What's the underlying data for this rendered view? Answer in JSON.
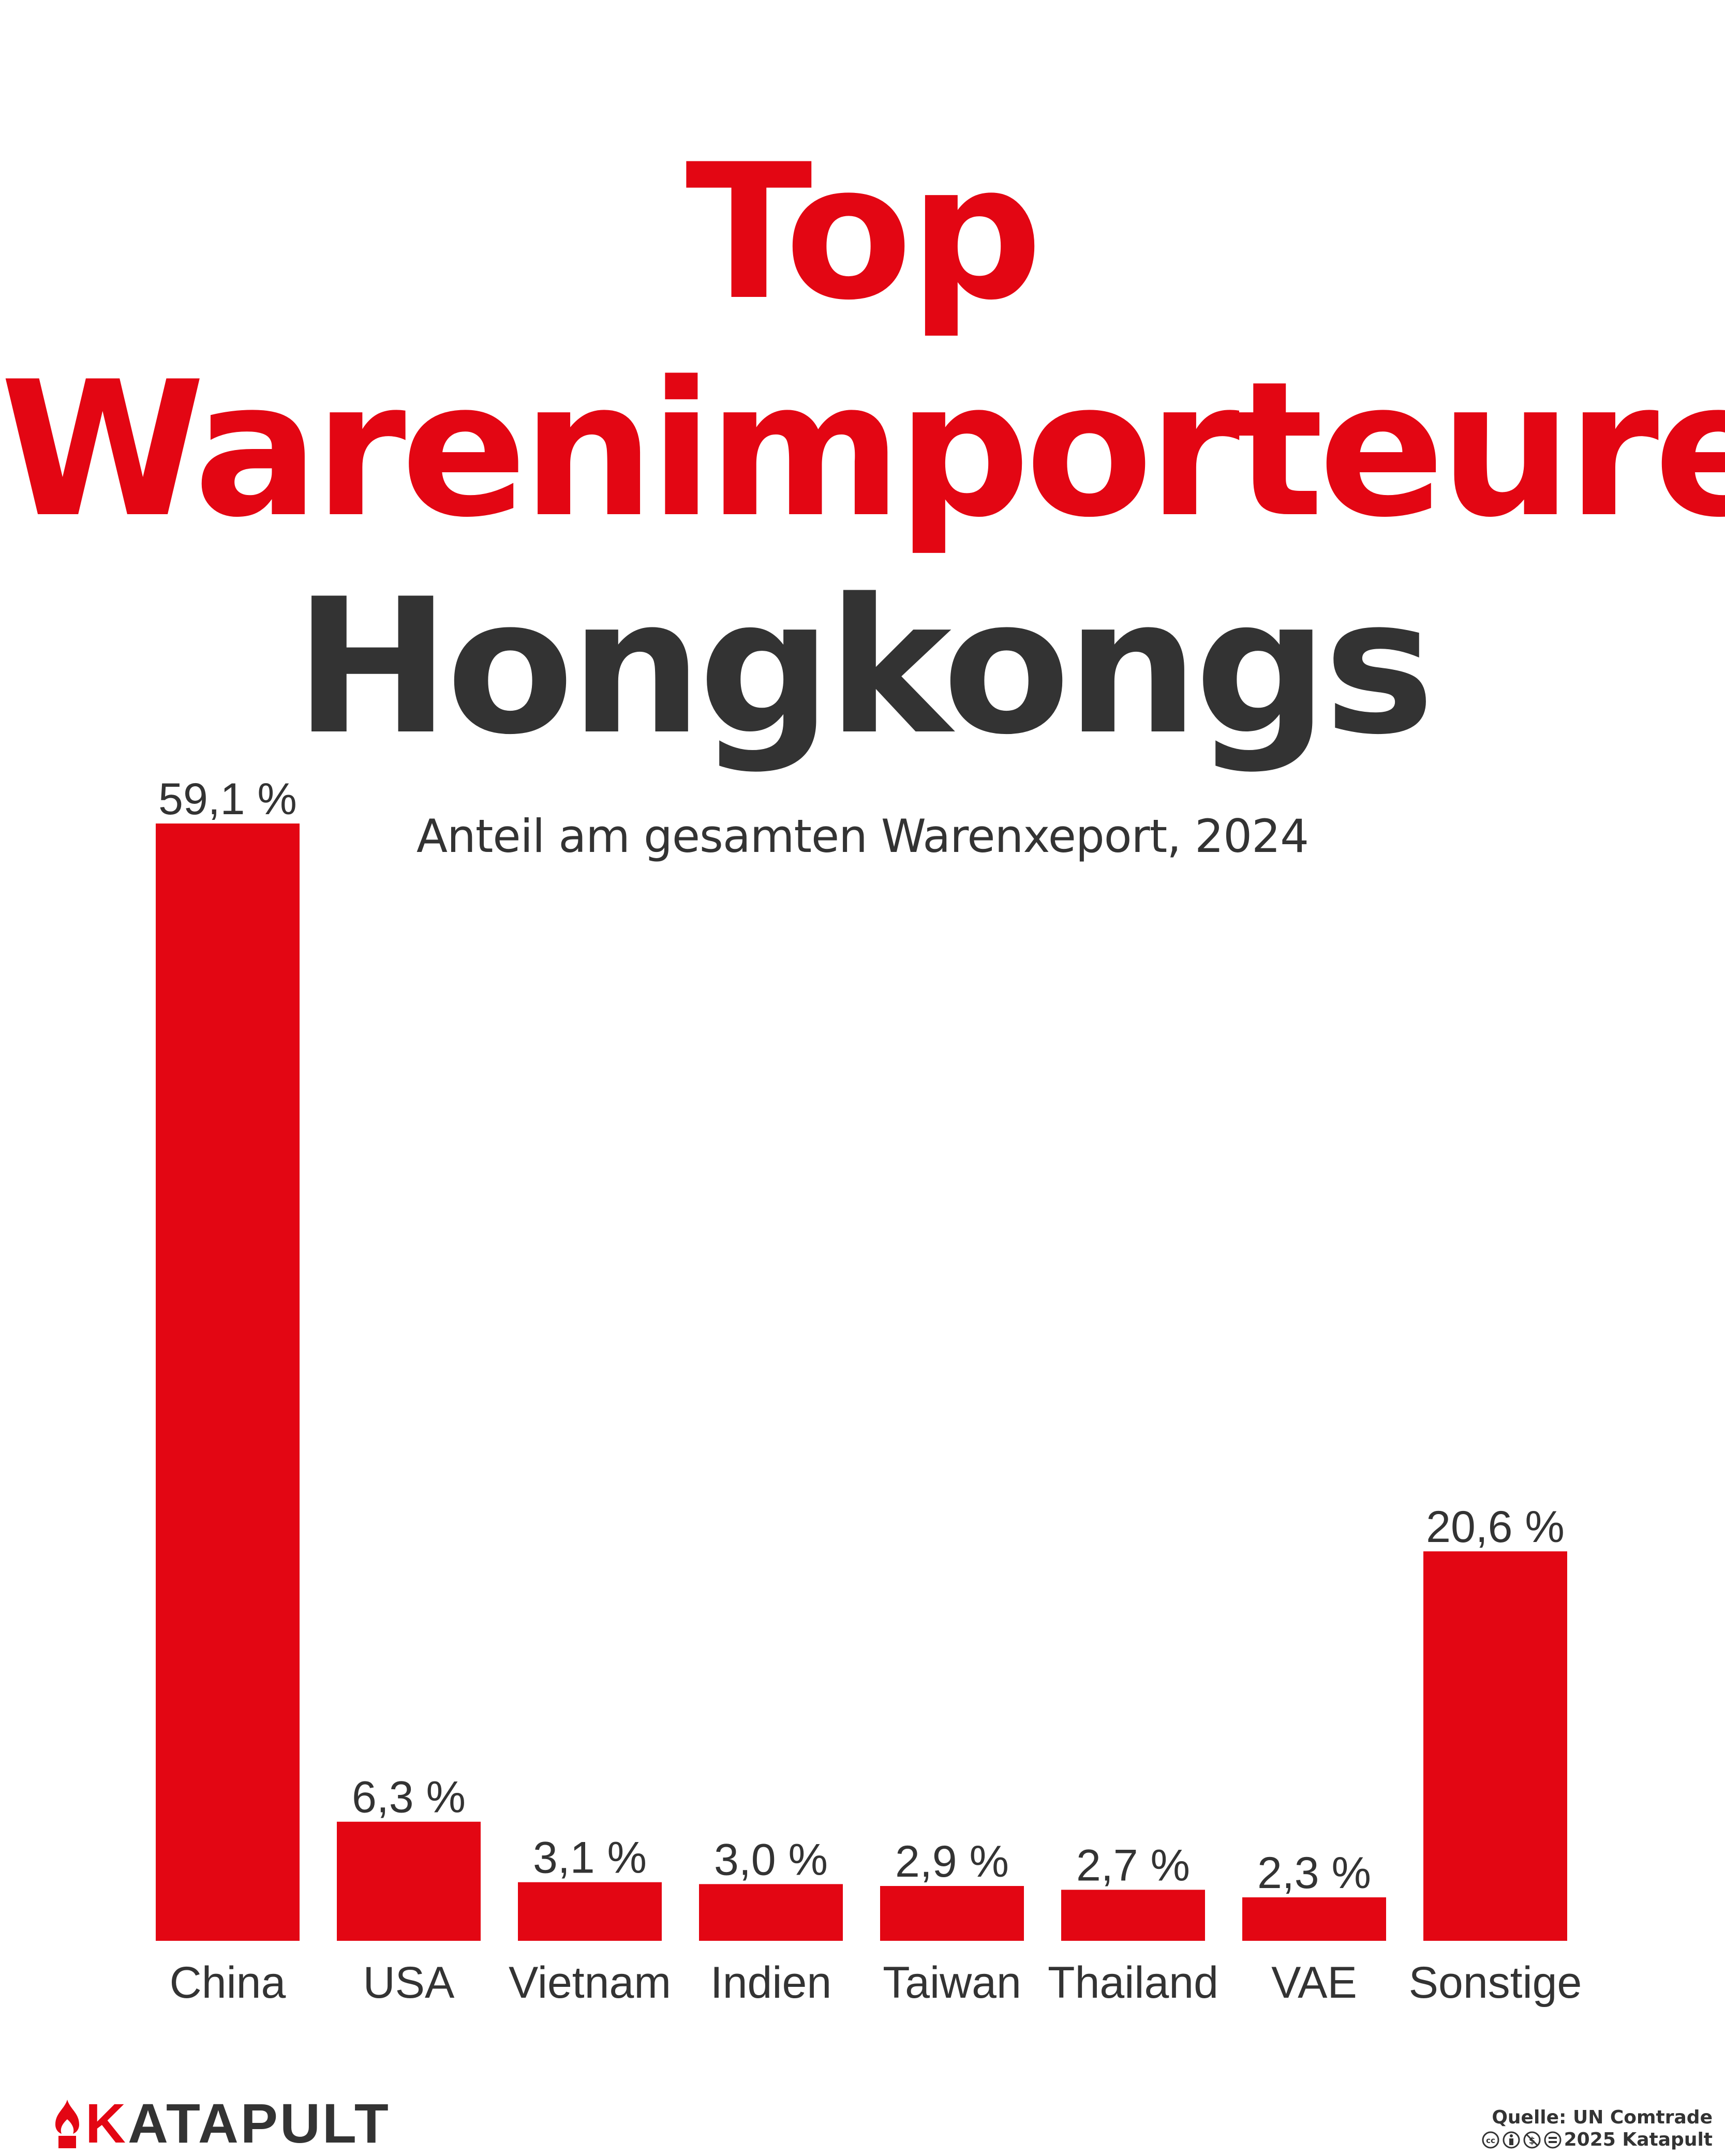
{
  "title_line1": "Top",
  "title_line2": "Warenimporteure",
  "title_line3": "Hongkongs",
  "subtitle": "Anteil am gesamten Warenxeport, 2024",
  "colors": {
    "accent": "#e30613",
    "text": "#333333",
    "background": "#ffffff"
  },
  "chart_data": {
    "type": "bar",
    "title": "Top Warenimporteure Hongkongs",
    "subtitle": "Anteil am gesamten Warenxeport, 2024",
    "categories": [
      "China",
      "USA",
      "Vietnam",
      "Indien",
      "Taiwan",
      "Thailand",
      "VAE",
      "Sonstige"
    ],
    "values": [
      59.1,
      6.3,
      3.1,
      3.0,
      2.9,
      2.7,
      2.3,
      20.6
    ],
    "labels": [
      "59,1 %",
      "6,3 %",
      "3,1 %",
      "3,0 %",
      "2,9 %",
      "2,7 %",
      "2,3 %",
      "20,6 %"
    ],
    "unit": "%",
    "ylim": [
      0,
      59.1
    ],
    "grid": false,
    "legend": "none"
  },
  "footer": {
    "logo": "KATAPULT",
    "logo_icon": "katapult-flame-icon",
    "source": "Quelle: UN Comtrade",
    "license_icons": [
      "cc-icon",
      "by-icon",
      "nc-icon",
      "nd-icon"
    ],
    "copyright": "2025 Katapult"
  }
}
